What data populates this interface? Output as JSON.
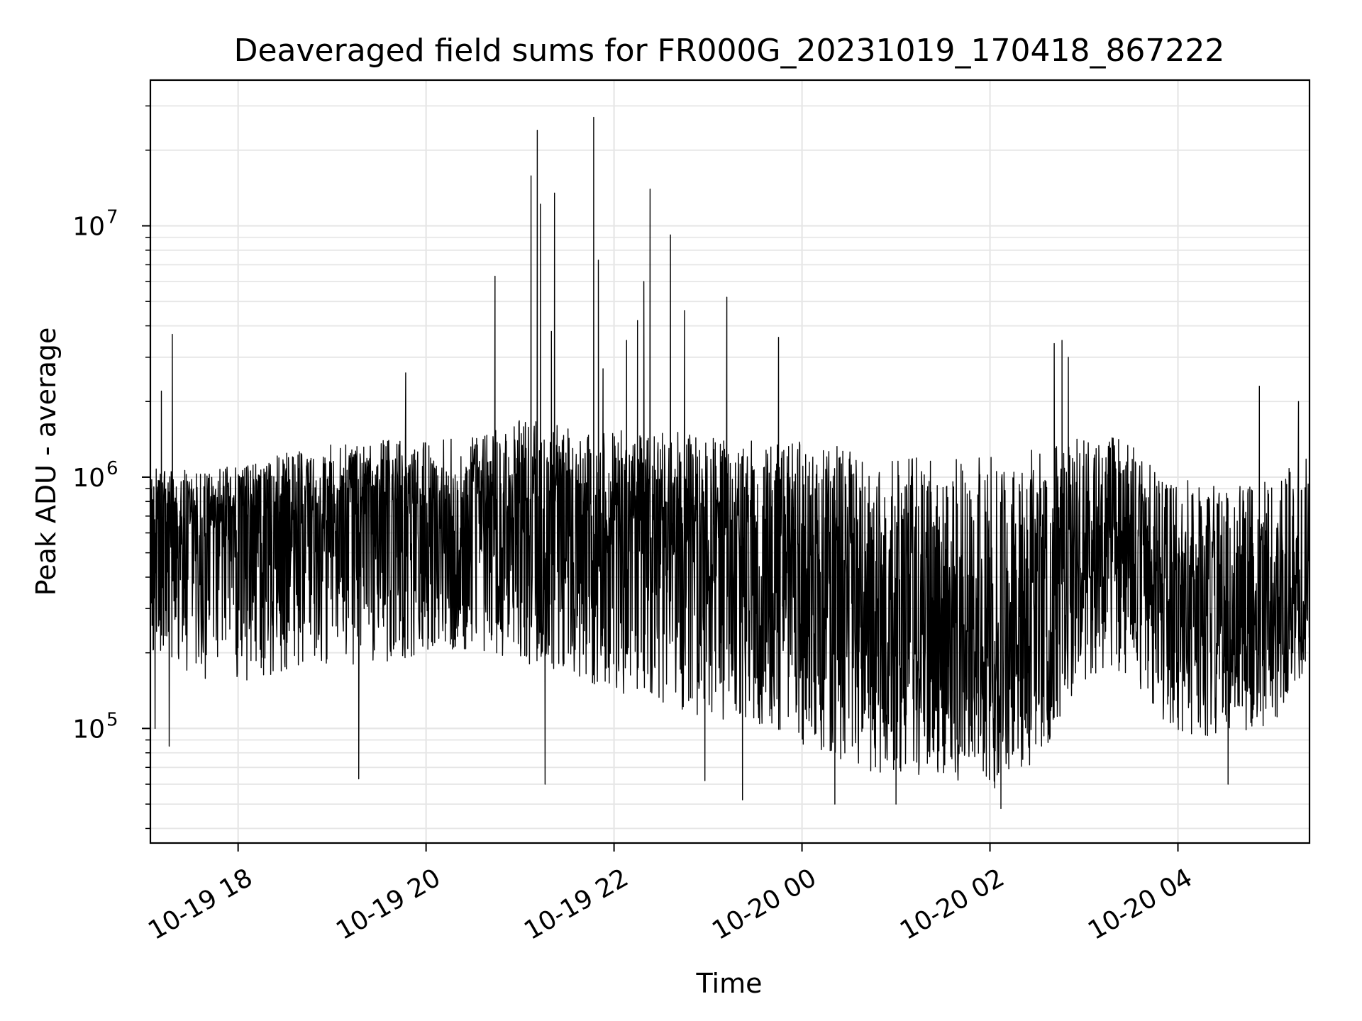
{
  "chart_data": {
    "type": "line",
    "title": "Deaveraged field sums for FR000G_20231019_170418_867222",
    "xlabel": "Time",
    "ylabel": "Peak ADU - average",
    "yscale": "log",
    "ylim": [
      35000,
      38000000
    ],
    "xlim": [
      "2023-10-19 17:04",
      "2023-10-20 05:24"
    ],
    "grid": true,
    "line_color": "#000000",
    "x_ticks": [
      {
        "value": "2023-10-19 18:00",
        "label": "10-19 18"
      },
      {
        "value": "2023-10-19 20:00",
        "label": "10-19 20"
      },
      {
        "value": "2023-10-19 22:00",
        "label": "10-19 22"
      },
      {
        "value": "2023-10-20 00:00",
        "label": "10-20 00"
      },
      {
        "value": "2023-10-20 02:00",
        "label": "10-20 02"
      },
      {
        "value": "2023-10-20 04:00",
        "label": "10-20 04"
      }
    ],
    "y_ticks": [
      {
        "value": 100000,
        "base": "10",
        "exp": "5"
      },
      {
        "value": 1000000,
        "base": "10",
        "exp": "6"
      },
      {
        "value": 10000000,
        "base": "10",
        "exp": "7"
      }
    ],
    "envelope": {
      "x": [
        "2023-10-19 17:04",
        "2023-10-19 17:30",
        "2023-10-19 18:00",
        "2023-10-19 18:30",
        "2023-10-19 19:00",
        "2023-10-19 19:30",
        "2023-10-19 20:00",
        "2023-10-19 20:30",
        "2023-10-19 21:00",
        "2023-10-19 21:30",
        "2023-10-19 22:00",
        "2023-10-19 22:30",
        "2023-10-19 23:00",
        "2023-10-19 23:30",
        "2023-10-20 00:00",
        "2023-10-20 00:30",
        "2023-10-20 01:00",
        "2023-10-20 01:30",
        "2023-10-20 02:00",
        "2023-10-20 02:30",
        "2023-10-20 03:00",
        "2023-10-20 03:30",
        "2023-10-20 04:00",
        "2023-10-20 04:30",
        "2023-10-20 05:00",
        "2023-10-20 05:24"
      ],
      "median": [
        600000,
        650000,
        650000,
        720000,
        760000,
        790000,
        680000,
        760000,
        760000,
        720000,
        700000,
        620000,
        560000,
        500000,
        400000,
        330000,
        260000,
        240000,
        230000,
        260000,
        560000,
        550000,
        300000,
        270000,
        280000,
        350000
      ],
      "low": [
        200000,
        160000,
        150000,
        170000,
        180000,
        180000,
        200000,
        200000,
        180000,
        160000,
        140000,
        120000,
        110000,
        100000,
        85000,
        70000,
        65000,
        62000,
        60000,
        70000,
        150000,
        160000,
        90000,
        95000,
        100000,
        180000
      ],
      "high": [
        1100000,
        1100000,
        1100000,
        1250000,
        1350000,
        1400000,
        1400000,
        1450000,
        1700000,
        1600000,
        1550000,
        1550000,
        1500000,
        1400000,
        1400000,
        1300000,
        1200000,
        1200000,
        1200000,
        1300000,
        1500000,
        1400000,
        1000000,
        900000,
        1000000,
        1500000
      ]
    },
    "peaks": [
      {
        "x": "2023-10-19 17:07",
        "y": 100000
      },
      {
        "x": "2023-10-19 17:11",
        "y": 2200000
      },
      {
        "x": "2023-10-19 17:16",
        "y": 85000
      },
      {
        "x": "2023-10-19 17:18",
        "y": 3700000
      },
      {
        "x": "2023-10-19 19:17",
        "y": 63000
      },
      {
        "x": "2023-10-19 19:47",
        "y": 2600000
      },
      {
        "x": "2023-10-19 20:44",
        "y": 6300000
      },
      {
        "x": "2023-10-19 21:07",
        "y": 15800000
      },
      {
        "x": "2023-10-19 21:11",
        "y": 24000000
      },
      {
        "x": "2023-10-19 21:13",
        "y": 12200000
      },
      {
        "x": "2023-10-19 21:16",
        "y": 60000
      },
      {
        "x": "2023-10-19 21:20",
        "y": 3800000
      },
      {
        "x": "2023-10-19 21:22",
        "y": 13500000
      },
      {
        "x": "2023-10-19 21:47",
        "y": 27000000
      },
      {
        "x": "2023-10-19 21:50",
        "y": 7300000
      },
      {
        "x": "2023-10-19 21:53",
        "y": 2700000
      },
      {
        "x": "2023-10-19 22:08",
        "y": 3500000
      },
      {
        "x": "2023-10-19 22:15",
        "y": 4200000
      },
      {
        "x": "2023-10-19 22:19",
        "y": 6000000
      },
      {
        "x": "2023-10-19 22:23",
        "y": 14000000
      },
      {
        "x": "2023-10-19 22:36",
        "y": 9200000
      },
      {
        "x": "2023-10-19 22:45",
        "y": 4600000
      },
      {
        "x": "2023-10-19 22:58",
        "y": 62000
      },
      {
        "x": "2023-10-19 23:12",
        "y": 5200000
      },
      {
        "x": "2023-10-19 23:22",
        "y": 52000
      },
      {
        "x": "2023-10-19 23:45",
        "y": 3600000
      },
      {
        "x": "2023-10-20 00:21",
        "y": 50000
      },
      {
        "x": "2023-10-20 01:00",
        "y": 50000
      },
      {
        "x": "2023-10-20 02:03",
        "y": 58000
      },
      {
        "x": "2023-10-20 02:07",
        "y": 48000
      },
      {
        "x": "2023-10-20 02:41",
        "y": 3400000
      },
      {
        "x": "2023-10-20 02:46",
        "y": 3500000
      },
      {
        "x": "2023-10-20 02:50",
        "y": 3000000
      },
      {
        "x": "2023-10-20 04:32",
        "y": 60000
      },
      {
        "x": "2023-10-20 04:52",
        "y": 2300000
      },
      {
        "x": "2023-10-20 05:17",
        "y": 2000000
      }
    ]
  }
}
